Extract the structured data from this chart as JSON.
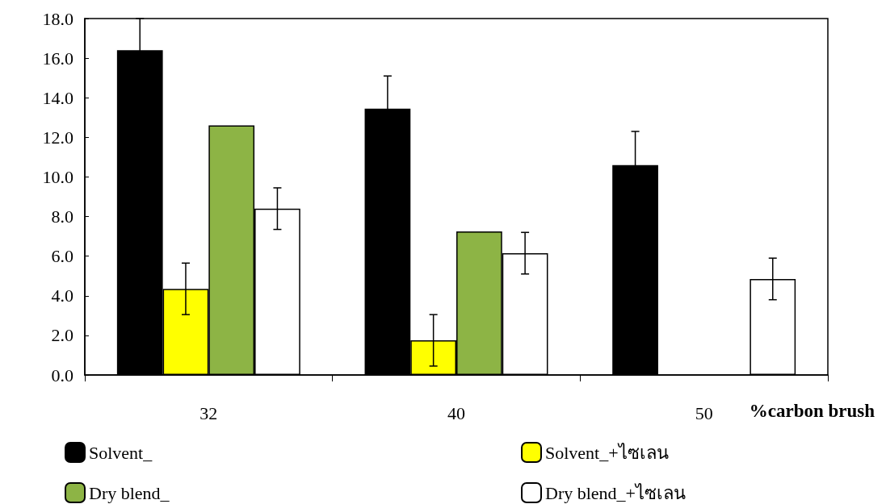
{
  "chart_data": {
    "type": "bar",
    "xlabel": "%carbon brush",
    "categories": [
      "32",
      "40",
      "50"
    ],
    "series": [
      {
        "name": "Solvent_",
        "color": "#000000",
        "values": [
          16.4,
          13.45,
          10.6
        ],
        "errors": [
          1.6,
          1.65,
          1.7
        ]
      },
      {
        "name": "Solvent_+ไซเลน",
        "color": "#ffff00",
        "values": [
          4.35,
          1.75,
          null
        ],
        "errors": [
          1.3,
          1.3,
          null
        ]
      },
      {
        "name": "Dry blend_",
        "color": "#8db445",
        "values": [
          12.6,
          7.25,
          null
        ]
      },
      {
        "name": "Dry blend_+ไซเลน",
        "color": "#ffffff",
        "values": [
          8.4,
          6.15,
          4.85
        ],
        "errors": [
          1.05,
          1.05,
          1.05
        ]
      }
    ],
    "ylim": [
      0,
      18
    ],
    "yticks": [
      {
        "value": 0,
        "label": "0.0"
      },
      {
        "value": 2,
        "label": "2.0"
      },
      {
        "value": 4,
        "label": "4.0"
      },
      {
        "value": 6,
        "label": "6.0"
      },
      {
        "value": 8,
        "label": "8.0"
      },
      {
        "value": 10,
        "label": "10.0"
      },
      {
        "value": 12,
        "label": "12.0"
      },
      {
        "value": 14,
        "label": "14.0"
      },
      {
        "value": 16,
        "label": "16.0"
      },
      {
        "value": 18,
        "label": "18.0"
      }
    ],
    "grid": false,
    "legend": "bottom"
  }
}
